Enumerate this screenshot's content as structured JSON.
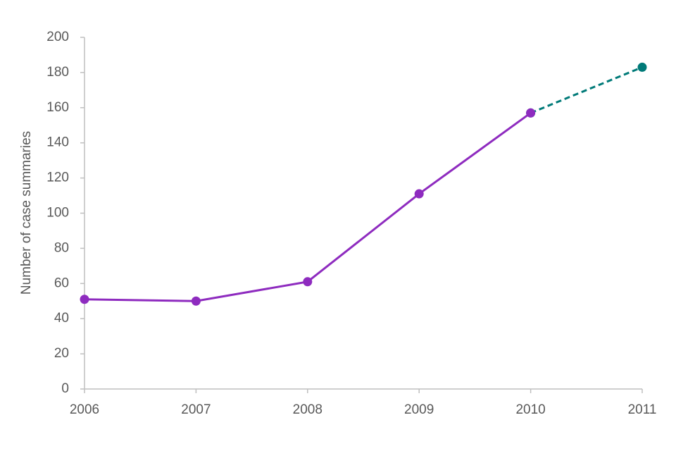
{
  "chart_data": {
    "type": "line",
    "y_label": "Number  of case summaries",
    "categories": [
      "2006",
      "2007",
      "2008",
      "2009",
      "2010",
      "2011"
    ],
    "series": [
      {
        "color": "#8e2bbf",
        "dashed": false,
        "values": [
          51,
          50,
          61,
          111,
          157,
          null
        ]
      },
      {
        "color": "#007a78",
        "dashed": true,
        "values": [
          null,
          null,
          null,
          null,
          157,
          183
        ]
      }
    ],
    "ylim": [
      0,
      200
    ],
    "yticks": [
      0,
      20,
      40,
      60,
      80,
      100,
      120,
      140,
      160,
      180,
      200
    ],
    "grid": false
  }
}
